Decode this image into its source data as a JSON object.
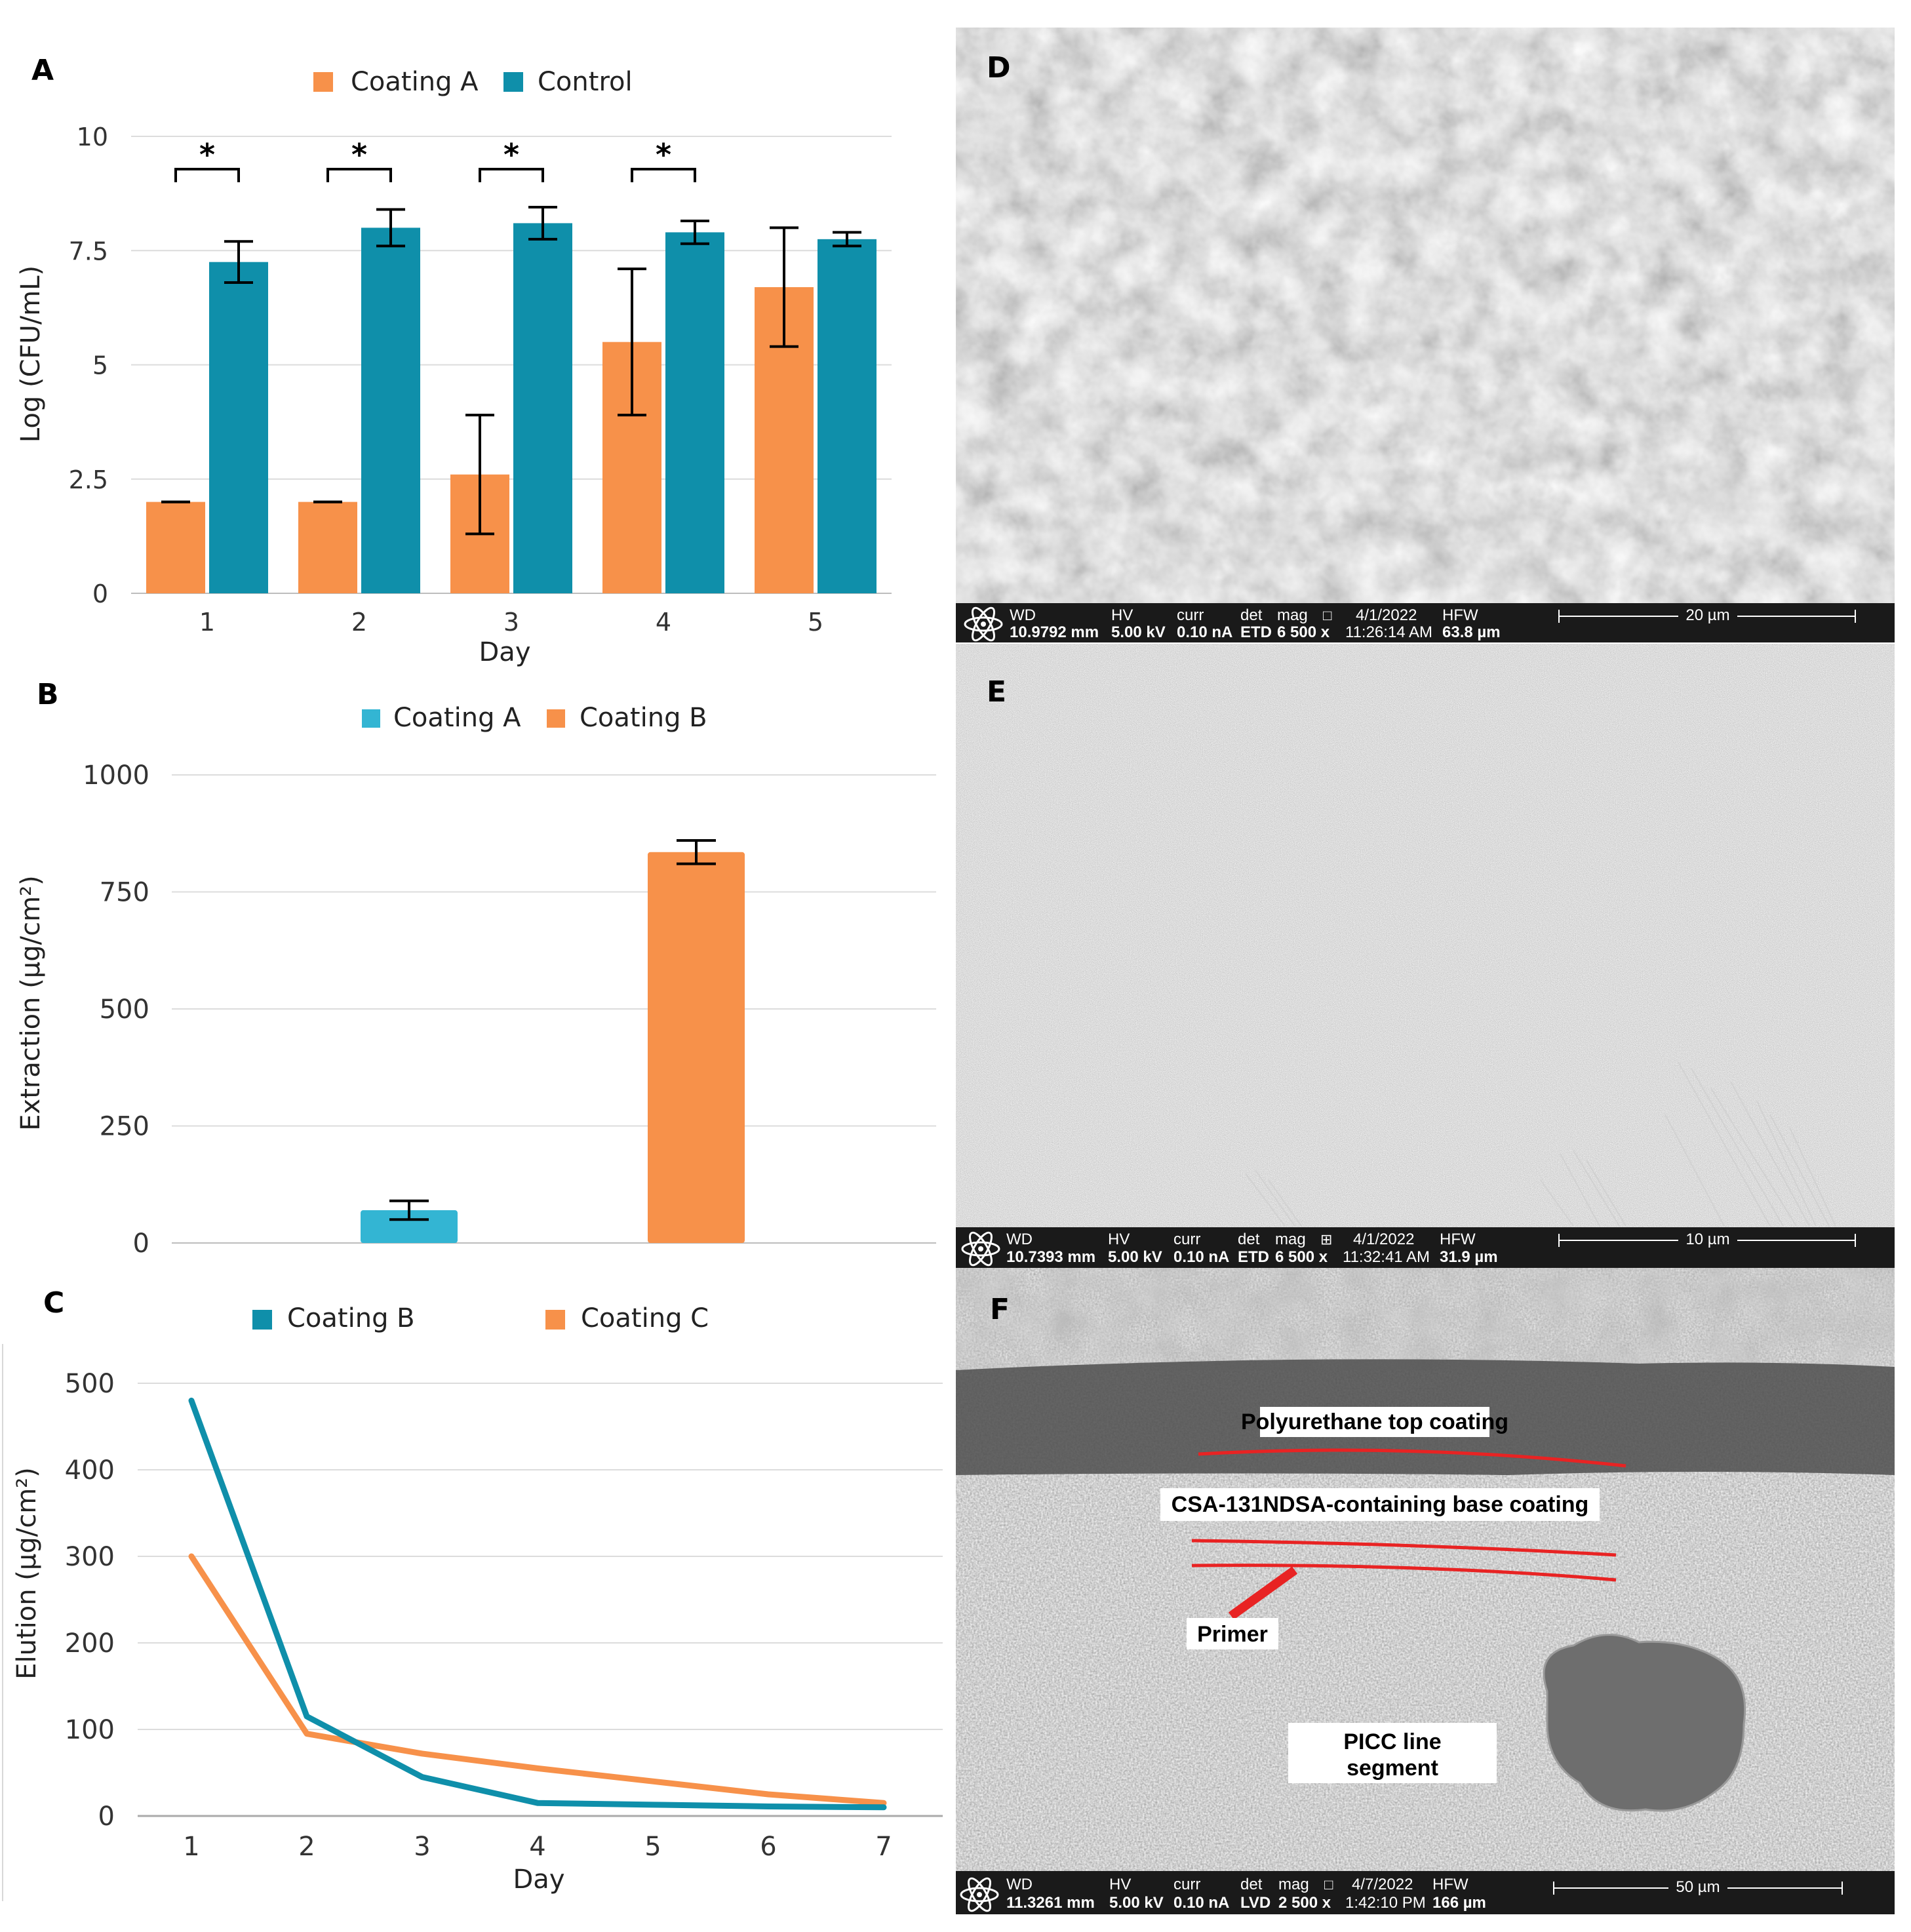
{
  "charts": {
    "A": {
      "panel_label": "A",
      "type": "bar",
      "xlabel": "Day",
      "ylabel": "Log (CFU/mL)",
      "categories": [
        "1",
        "2",
        "3",
        "4",
        "5"
      ],
      "yticks": [
        "0",
        "2.5",
        "5",
        "7.5",
        "10"
      ],
      "ylim": [
        0,
        10
      ],
      "series": [
        {
          "name": "Coating A",
          "color": "#F7914A",
          "values": [
            2.0,
            2.0,
            2.6,
            5.5,
            6.7
          ],
          "errors": [
            0.0,
            0.0,
            1.3,
            1.6,
            1.3
          ]
        },
        {
          "name": "Control",
          "color": "#0F8FAA",
          "values": [
            7.25,
            8.0,
            8.1,
            7.9,
            7.75
          ],
          "errors": [
            0.45,
            0.4,
            0.35,
            0.25,
            0.15
          ]
        }
      ],
      "significance": [
        "*",
        "*",
        "*",
        "*",
        ""
      ]
    },
    "B": {
      "panel_label": "B",
      "type": "bar",
      "xlabel": "",
      "ylabel": "Extraction (µg/cm²)",
      "yticks": [
        "0",
        "250",
        "500",
        "750",
        "1000"
      ],
      "ylim": [
        0,
        1000
      ],
      "series": [
        {
          "name": "Coating A",
          "color": "#33B5D3",
          "value": 70,
          "error": 20
        },
        {
          "name": "Coating B",
          "color": "#F7914A",
          "value": 835,
          "error": 25
        }
      ]
    },
    "C": {
      "panel_label": "C",
      "type": "line",
      "xlabel": "Day",
      "ylabel": "Elution (µg/cm²)",
      "categories": [
        "1",
        "2",
        "3",
        "4",
        "5",
        "6",
        "7"
      ],
      "yticks": [
        "0",
        "100",
        "200",
        "300",
        "400",
        "500"
      ],
      "ylim": [
        0,
        500
      ],
      "series": [
        {
          "name": "Coating B",
          "color": "#0F8FAA",
          "values": [
            480,
            115,
            45,
            15,
            13,
            11,
            10
          ]
        },
        {
          "name": "Coating C",
          "color": "#F7914A",
          "values": [
            300,
            95,
            72,
            55,
            40,
            25,
            15
          ]
        }
      ],
      "mid_point_note": "lines cross near day 2.5"
    }
  },
  "chart_data": [
    {
      "type": "bar",
      "title": "A",
      "categories": [
        "1",
        "2",
        "3",
        "4",
        "5"
      ],
      "xlabel": "Day",
      "ylabel": "Log (CFU/mL)",
      "ylim": [
        0,
        10
      ],
      "series": [
        {
          "name": "Coating A",
          "values": [
            2.0,
            2.0,
            2.6,
            5.5,
            6.7
          ]
        },
        {
          "name": "Control",
          "values": [
            7.25,
            8.0,
            8.1,
            7.9,
            7.75
          ]
        }
      ]
    },
    {
      "type": "bar",
      "title": "B",
      "categories": [
        "Coating A",
        "Coating B"
      ],
      "ylabel": "Extraction (µg/cm²)",
      "ylim": [
        0,
        1000
      ],
      "values": [
        70,
        835
      ]
    },
    {
      "type": "line",
      "title": "C",
      "x": [
        1,
        2,
        3,
        4,
        5,
        6,
        7
      ],
      "xlabel": "Day",
      "ylabel": "Elution (µg/cm²)",
      "ylim": [
        0,
        500
      ],
      "series": [
        {
          "name": "Coating B",
          "values": [
            480,
            115,
            45,
            15,
            13,
            11,
            10
          ]
        },
        {
          "name": "Coating C",
          "values": [
            300,
            95,
            72,
            55,
            40,
            25,
            15
          ]
        }
      ]
    }
  ],
  "sem": {
    "D": {
      "panel_label": "D",
      "headers": [
        "WD",
        "HV",
        "curr",
        "det",
        "mag",
        "4/1/2022",
        "HFW"
      ],
      "mag_symbol": "□",
      "values": [
        "10.9792 mm",
        "5.00 kV",
        "0.10 nA",
        "ETD",
        "6 500 x",
        "11:26:14 AM",
        "63.8 µm"
      ],
      "scale": "20 µm"
    },
    "E": {
      "panel_label": "E",
      "headers": [
        "WD",
        "HV",
        "curr",
        "det",
        "mag",
        "4/1/2022",
        "HFW"
      ],
      "mag_symbol": "⊞",
      "values": [
        "10.7393 mm",
        "5.00 kV",
        "0.10 nA",
        "ETD",
        "6 500 x",
        "11:32:41 AM",
        "31.9 µm"
      ],
      "scale": "10 µm"
    },
    "F": {
      "panel_label": "F",
      "headers": [
        "WD",
        "HV",
        "curr",
        "det",
        "mag",
        "4/7/2022",
        "HFW"
      ],
      "mag_symbol": "□",
      "values": [
        "11.3261 mm",
        "5.00 kV",
        "0.10 nA",
        "LVD",
        "2 500 x",
        "1:42:10 PM",
        "166 µm"
      ],
      "scale": "50 µm",
      "annotations": {
        "top": "Polyurethane top coating",
        "base": "CSA-131NDSA-containing base coating",
        "primer": "Primer",
        "picc_line1": "PICC line",
        "picc_line2": "segment"
      }
    }
  }
}
